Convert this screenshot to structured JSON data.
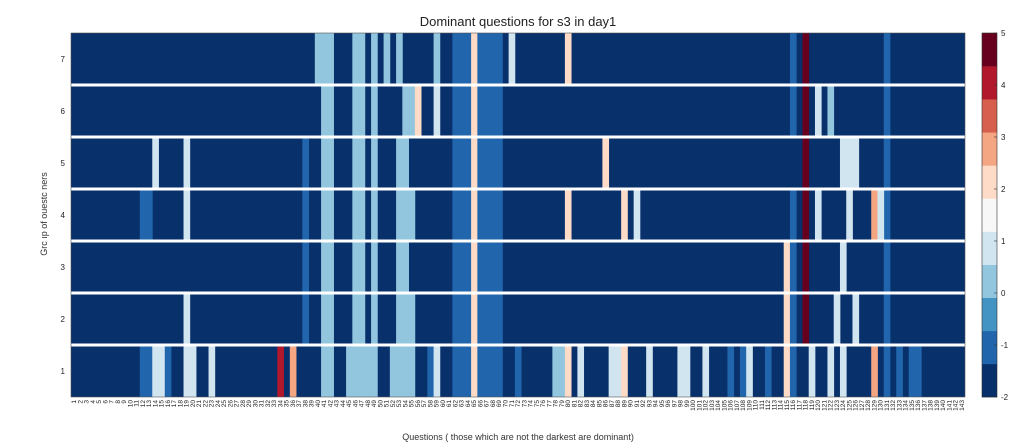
{
  "chart_data": {
    "type": "heatmap",
    "title": "Dominant questions for s3 in day1",
    "xlabel": "Questions ( those which are not the darkest are dominant)",
    "ylabel": "Grc ıp of ouestc ners",
    "rows": [
      1,
      2,
      3,
      4,
      5,
      6,
      7
    ],
    "n_questions": 143,
    "colorbar": {
      "ticks": [
        "-2",
        "-1",
        "0",
        "1",
        "2",
        "3",
        "4",
        "5"
      ],
      "min": -2,
      "max": 5,
      "colors": [
        "#08306b",
        "#2166ac",
        "#4393c3",
        "#92c5de",
        "#d1e5f0",
        "#f7f7f7",
        "#fddbc7",
        "#f4a582",
        "#d6604d",
        "#b2182b",
        "#67001f"
      ]
    },
    "background_level": 0,
    "columns_all_rows": [
      {
        "q": 41,
        "level": 3
      },
      {
        "q": 42,
        "level": 3
      },
      {
        "q": 46,
        "level": 3
      },
      {
        "q": 47,
        "level": 3
      },
      {
        "q": 49,
        "level": 3
      },
      {
        "q": 62,
        "level": 1
      },
      {
        "q": 63,
        "level": 1
      },
      {
        "q": 64,
        "level": 1
      },
      {
        "q": 65,
        "level": 6
      },
      {
        "q": 66,
        "level": 1
      },
      {
        "q": 67,
        "level": 1
      },
      {
        "q": 68,
        "level": 1
      },
      {
        "q": 69,
        "level": 1
      },
      {
        "q": 131,
        "level": 1
      }
    ],
    "cells": [
      {
        "row": 7,
        "q": 40,
        "level": 3
      },
      {
        "row": 7,
        "q": 51,
        "level": 3
      },
      {
        "row": 7,
        "q": 53,
        "level": 3
      },
      {
        "row": 7,
        "q": 59,
        "level": 3
      },
      {
        "row": 7,
        "q": 71,
        "level": 4
      },
      {
        "row": 7,
        "q": 80,
        "level": 6
      },
      {
        "row": 7,
        "q": 116,
        "level": 1
      },
      {
        "row": 7,
        "q": 118,
        "level": 10
      },
      {
        "row": 6,
        "q": 54,
        "level": 3
      },
      {
        "row": 6,
        "q": 55,
        "level": 3
      },
      {
        "row": 6,
        "q": 56,
        "level": 6
      },
      {
        "row": 6,
        "q": 59,
        "level": 4
      },
      {
        "row": 6,
        "q": 116,
        "level": 1
      },
      {
        "row": 6,
        "q": 118,
        "level": 10
      },
      {
        "row": 6,
        "q": 120,
        "level": 4
      },
      {
        "row": 6,
        "q": 122,
        "level": 3
      },
      {
        "row": 5,
        "q": 14,
        "level": 4
      },
      {
        "row": 5,
        "q": 19,
        "level": 4
      },
      {
        "row": 5,
        "q": 38,
        "level": 1
      },
      {
        "row": 5,
        "q": 53,
        "level": 3
      },
      {
        "row": 5,
        "q": 54,
        "level": 3
      },
      {
        "row": 5,
        "q": 86,
        "level": 6
      },
      {
        "row": 5,
        "q": 118,
        "level": 10
      },
      {
        "row": 5,
        "q": 124,
        "level": 4
      },
      {
        "row": 5,
        "q": 125,
        "level": 4
      },
      {
        "row": 5,
        "q": 126,
        "level": 4
      },
      {
        "row": 4,
        "q": 12,
        "level": 1
      },
      {
        "row": 4,
        "q": 13,
        "level": 1
      },
      {
        "row": 4,
        "q": 19,
        "level": 4
      },
      {
        "row": 4,
        "q": 38,
        "level": 1
      },
      {
        "row": 4,
        "q": 53,
        "level": 3
      },
      {
        "row": 4,
        "q": 54,
        "level": 3
      },
      {
        "row": 4,
        "q": 55,
        "level": 3
      },
      {
        "row": 4,
        "q": 80,
        "level": 6
      },
      {
        "row": 4,
        "q": 89,
        "level": 6
      },
      {
        "row": 4,
        "q": 91,
        "level": 4
      },
      {
        "row": 4,
        "q": 116,
        "level": 1
      },
      {
        "row": 4,
        "q": 118,
        "level": 10
      },
      {
        "row": 4,
        "q": 120,
        "level": 4
      },
      {
        "row": 4,
        "q": 125,
        "level": 4
      },
      {
        "row": 4,
        "q": 129,
        "level": 7
      },
      {
        "row": 4,
        "q": 130,
        "level": 4
      },
      {
        "row": 3,
        "q": 38,
        "level": 1
      },
      {
        "row": 3,
        "q": 53,
        "level": 3
      },
      {
        "row": 3,
        "q": 54,
        "level": 3
      },
      {
        "row": 3,
        "q": 115,
        "level": 6
      },
      {
        "row": 3,
        "q": 116,
        "level": 1
      },
      {
        "row": 3,
        "q": 118,
        "level": 10
      },
      {
        "row": 3,
        "q": 124,
        "level": 4
      },
      {
        "row": 2,
        "q": 19,
        "level": 4
      },
      {
        "row": 2,
        "q": 38,
        "level": 1
      },
      {
        "row": 2,
        "q": 53,
        "level": 3
      },
      {
        "row": 2,
        "q": 54,
        "level": 3
      },
      {
        "row": 2,
        "q": 55,
        "level": 3
      },
      {
        "row": 2,
        "q": 115,
        "level": 6
      },
      {
        "row": 2,
        "q": 116,
        "level": 1
      },
      {
        "row": 2,
        "q": 118,
        "level": 10
      },
      {
        "row": 2,
        "q": 123,
        "level": 4
      },
      {
        "row": 2,
        "q": 126,
        "level": 4
      },
      {
        "row": 1,
        "q": 12,
        "level": 1
      },
      {
        "row": 1,
        "q": 13,
        "level": 1
      },
      {
        "row": 1,
        "q": 14,
        "level": 4
      },
      {
        "row": 1,
        "q": 15,
        "level": 4
      },
      {
        "row": 1,
        "q": 16,
        "level": 1
      },
      {
        "row": 1,
        "q": 19,
        "level": 4
      },
      {
        "row": 1,
        "q": 20,
        "level": 4
      },
      {
        "row": 1,
        "q": 23,
        "level": 4
      },
      {
        "row": 1,
        "q": 34,
        "level": 9
      },
      {
        "row": 1,
        "q": 36,
        "level": 7
      },
      {
        "row": 1,
        "q": 45,
        "level": 3
      },
      {
        "row": 1,
        "q": 48,
        "level": 3
      },
      {
        "row": 1,
        "q": 52,
        "level": 3
      },
      {
        "row": 1,
        "q": 53,
        "level": 3
      },
      {
        "row": 1,
        "q": 54,
        "level": 3
      },
      {
        "row": 1,
        "q": 55,
        "level": 3
      },
      {
        "row": 1,
        "q": 58,
        "level": 1
      },
      {
        "row": 1,
        "q": 59,
        "level": 4
      },
      {
        "row": 1,
        "q": 72,
        "level": 1
      },
      {
        "row": 1,
        "q": 78,
        "level": 3
      },
      {
        "row": 1,
        "q": 79,
        "level": 3
      },
      {
        "row": 1,
        "q": 80,
        "level": 6
      },
      {
        "row": 1,
        "q": 82,
        "level": 4
      },
      {
        "row": 1,
        "q": 87,
        "level": 4
      },
      {
        "row": 1,
        "q": 88,
        "level": 4
      },
      {
        "row": 1,
        "q": 89,
        "level": 6
      },
      {
        "row": 1,
        "q": 93,
        "level": 4
      },
      {
        "row": 1,
        "q": 98,
        "level": 4
      },
      {
        "row": 1,
        "q": 99,
        "level": 4
      },
      {
        "row": 1,
        "q": 102,
        "level": 4
      },
      {
        "row": 1,
        "q": 106,
        "level": 1
      },
      {
        "row": 1,
        "q": 108,
        "level": 1
      },
      {
        "row": 1,
        "q": 109,
        "level": 4
      },
      {
        "row": 1,
        "q": 112,
        "level": 1
      },
      {
        "row": 1,
        "q": 115,
        "level": 6
      },
      {
        "row": 1,
        "q": 116,
        "level": 1
      },
      {
        "row": 1,
        "q": 119,
        "level": 4
      },
      {
        "row": 1,
        "q": 122,
        "level": 4
      },
      {
        "row": 1,
        "q": 124,
        "level": 4
      },
      {
        "row": 1,
        "q": 129,
        "level": 7
      },
      {
        "row": 1,
        "q": 133,
        "level": 1
      },
      {
        "row": 1,
        "q": 135,
        "level": 1
      },
      {
        "row": 1,
        "q": 136,
        "level": 1
      }
    ]
  }
}
